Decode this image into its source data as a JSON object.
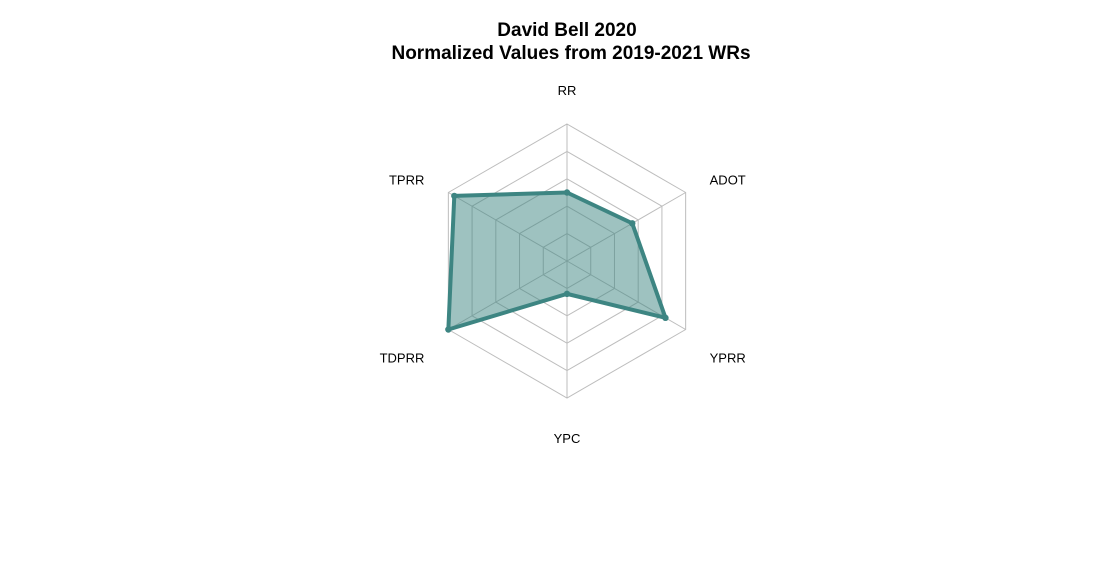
{
  "chart_data": {
    "type": "radar",
    "title": "David Bell 2020",
    "subtitle": "Normalized Values from 2019-2021 WRs",
    "axes": [
      "RR",
      "ADOT",
      "YPRR",
      "YPC",
      "TDPRR",
      "TPRR"
    ],
    "values": [
      0.5,
      0.55,
      0.83,
      0.24,
      1.0,
      0.95
    ],
    "range": [
      0,
      1
    ],
    "grid_levels": 5,
    "grid": true,
    "colors": {
      "series_line": "#3d8582",
      "series_fill": "#3d8582",
      "grid": "#bdbdbd"
    }
  }
}
